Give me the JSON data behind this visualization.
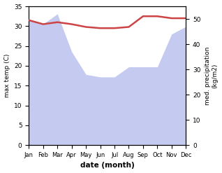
{
  "months": [
    "Jan",
    "Feb",
    "Mar",
    "Apr",
    "May",
    "Jun",
    "Jul",
    "Aug",
    "Sep",
    "Oct",
    "Nov",
    "Dec"
  ],
  "month_indices": [
    0,
    1,
    2,
    3,
    4,
    5,
    6,
    7,
    8,
    9,
    10,
    11
  ],
  "temperature": [
    31.5,
    30.5,
    31.0,
    30.5,
    29.8,
    29.5,
    29.5,
    29.8,
    32.5,
    32.5,
    32.0,
    32.0
  ],
  "precipitation": [
    50,
    48,
    52,
    37,
    28,
    27,
    27,
    31,
    31,
    31,
    44,
    47
  ],
  "temp_color": "#cc4444",
  "precip_fill_color": "#c5cbf0",
  "xlabel": "date (month)",
  "ylabel_left": "max temp (C)",
  "ylabel_right": "med. precipitation\n(kg/m2)",
  "ylim_left": [
    0,
    35
  ],
  "ylim_right": [
    0,
    55
  ],
  "yticks_left": [
    0,
    5,
    10,
    15,
    20,
    25,
    30,
    35
  ],
  "yticks_right": [
    0,
    10,
    20,
    30,
    40,
    50
  ],
  "temp_linewidth": 1.8,
  "background_color": "#ffffff"
}
